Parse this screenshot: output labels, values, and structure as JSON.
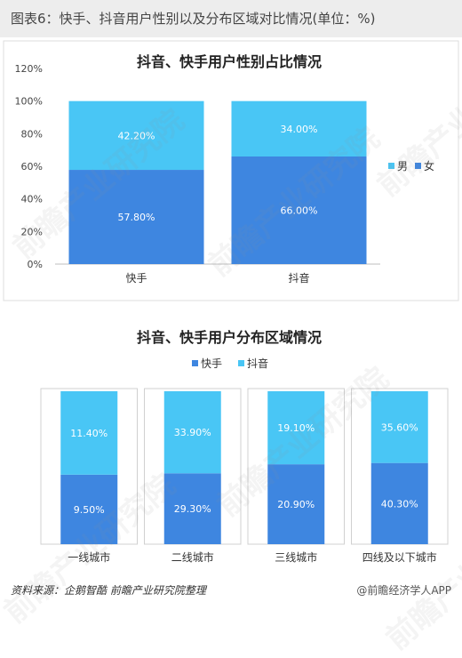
{
  "header": {
    "title": "图表6：快手、抖音用户性别以及分布区域对比情况(单位：%)"
  },
  "chart_data": [
    {
      "type": "bar",
      "stacked": true,
      "title": "抖音、快手用户性别占比情况",
      "categories": [
        "快手",
        "抖音"
      ],
      "series": [
        {
          "name": "女",
          "values": [
            57.8,
            66.0
          ],
          "labels": [
            "57.80%",
            "66.00%"
          ],
          "color": "#3e86e0"
        },
        {
          "name": "男",
          "values": [
            42.2,
            34.0
          ],
          "labels": [
            "42.20%",
            "34.00%"
          ],
          "color": "#49c6f5"
        }
      ],
      "y_ticks": [
        "0%",
        "20%",
        "40%",
        "60%",
        "80%",
        "100%",
        "120%"
      ],
      "ylim": [
        0,
        120
      ],
      "legend_position": "right",
      "legend_order": [
        "男",
        "女"
      ],
      "grid": false
    },
    {
      "type": "bar",
      "stacked": true,
      "title": "抖音、快手用户分布区域情况",
      "categories": [
        "一线城市",
        "二线城市",
        "三线城市",
        "四线及以下城市"
      ],
      "series": [
        {
          "name": "快手",
          "values": [
            9.5,
            29.3,
            20.9,
            40.3
          ],
          "labels": [
            "9.50%",
            "29.30%",
            "20.90%",
            "40.30%"
          ],
          "color": "#3e86e0"
        },
        {
          "name": "抖音",
          "values": [
            11.4,
            33.9,
            19.1,
            35.6
          ],
          "labels": [
            "11.40%",
            "33.90%",
            "19.10%",
            "35.60%"
          ],
          "color": "#49c6f5"
        }
      ],
      "stack_normalized": true,
      "legend_position": "top",
      "grid": false
    }
  ],
  "watermark": {
    "text": "前瞻产业研究院"
  },
  "footer": {
    "source": "资料来源：企鹅智酷 前瞻产业研究院整理",
    "brand": "@前瞻经济学人APP"
  }
}
